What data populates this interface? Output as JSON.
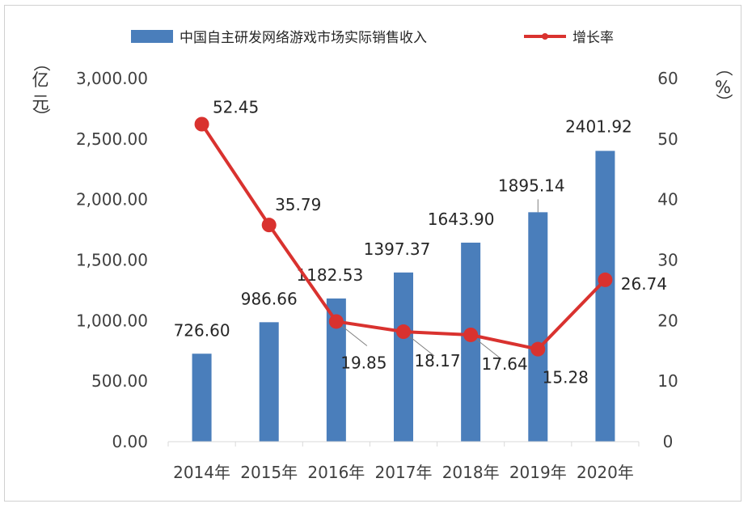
{
  "chart_data": {
    "type": "bar+line",
    "categories": [
      "2014年",
      "2015年",
      "2016年",
      "2017年",
      "2018年",
      "2019年",
      "2020年"
    ],
    "series": [
      {
        "name": "中国自主研发网络游戏市场实际销售收入",
        "type": "bar",
        "axis": "left",
        "color": "#4a7ebb",
        "values": [
          726.6,
          986.66,
          1182.53,
          1397.37,
          1643.9,
          1895.14,
          2401.92
        ],
        "labels": [
          "726.60",
          "986.66",
          "1182.53",
          "1397.37",
          "1643.90",
          "1895.14",
          "2401.92"
        ]
      },
      {
        "name": "增长率",
        "type": "line",
        "axis": "right",
        "color": "#d9322f",
        "values": [
          52.45,
          35.79,
          19.85,
          18.17,
          17.64,
          15.28,
          26.74
        ],
        "labels": [
          "52.45",
          "35.79",
          "19.85",
          "18.17",
          "17.64",
          "15.28",
          "26.74"
        ]
      }
    ],
    "y_left": {
      "unit_label": "（亿元）",
      "range": [
        0,
        3000
      ],
      "ticks": [
        "0.00",
        "500.00",
        "1,000.00",
        "1,500.00",
        "2,000.00",
        "2,500.00",
        "3,000.00"
      ],
      "tick_values": [
        0,
        500,
        1000,
        1500,
        2000,
        2500,
        3000
      ]
    },
    "y_right": {
      "unit_label": "（%）",
      "range": [
        0,
        60
      ],
      "ticks": [
        "0",
        "10",
        "20",
        "30",
        "40",
        "50",
        "60"
      ],
      "tick_values": [
        0,
        10,
        20,
        30,
        40,
        50,
        60
      ]
    },
    "grid": false,
    "legend_position": "top"
  }
}
